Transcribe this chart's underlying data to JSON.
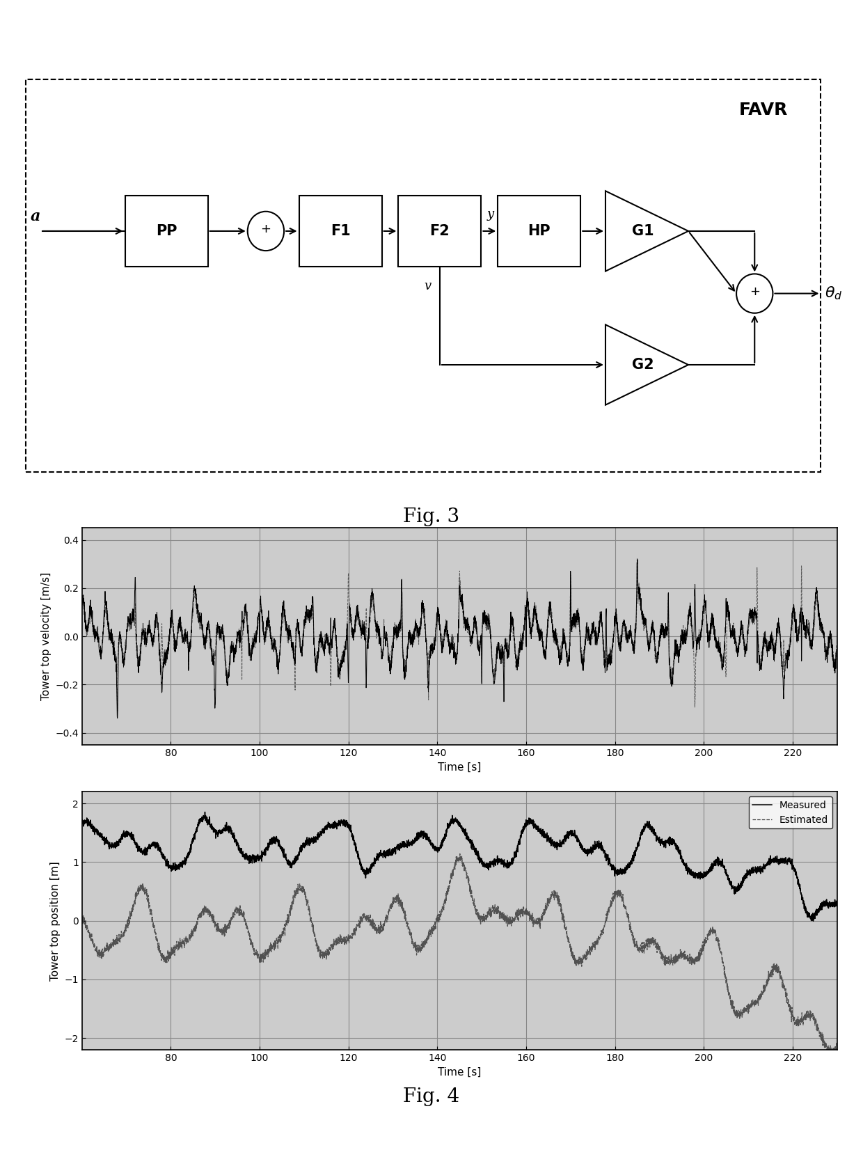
{
  "fig3_title": "Fig. 3",
  "fig4_title": "Fig. 4",
  "favr_label": "FAVR",
  "plot1_ylabel": "Tower top velocity [m/s]",
  "plot2_ylabel": "Tower top position [m]",
  "xlabel": "Time [s]",
  "xlim": [
    60,
    230
  ],
  "xticks": [
    80,
    100,
    120,
    140,
    160,
    180,
    200,
    220
  ],
  "plot1_ylim": [
    -0.45,
    0.45
  ],
  "plot1_yticks": [
    -0.4,
    -0.2,
    0.0,
    0.2,
    0.4
  ],
  "plot2_ylim": [
    -2.2,
    2.2
  ],
  "plot2_yticks": [
    -2,
    -1,
    0,
    1,
    2
  ],
  "legend_labels": [
    "Measured",
    "Estimated"
  ],
  "plot_bg": "#cccccc",
  "grid_color": "#888888",
  "line_color_measured": "#000000",
  "line_color_estimated": "#555555"
}
